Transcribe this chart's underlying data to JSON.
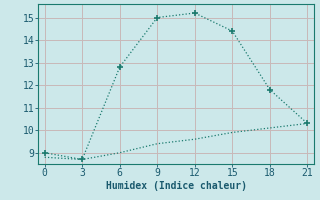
{
  "xlabel": "Humidex (Indice chaleur)",
  "line1_x": [
    0,
    3,
    6,
    9,
    12,
    15,
    18,
    21
  ],
  "line1_y": [
    9.0,
    8.7,
    12.8,
    15.0,
    15.2,
    14.4,
    11.8,
    10.3
  ],
  "line2_x": [
    0,
    3,
    6,
    9,
    12,
    15,
    18,
    21
  ],
  "line2_y": [
    8.8,
    8.7,
    9.0,
    9.4,
    9.6,
    9.9,
    10.1,
    10.3
  ],
  "line_color": "#1a7a6e",
  "xlim": [
    -0.5,
    21.5
  ],
  "ylim": [
    8.5,
    15.6
  ],
  "xticks": [
    0,
    3,
    6,
    9,
    12,
    15,
    18,
    21
  ],
  "yticks": [
    9,
    10,
    11,
    12,
    13,
    14,
    15
  ],
  "bg_color": "#cce8ea",
  "grid_color_h": "#c8b8b8",
  "grid_color_v": "#c8b8b8",
  "font_color": "#1a5a6e",
  "label_fontsize": 7,
  "tick_fontsize": 7
}
